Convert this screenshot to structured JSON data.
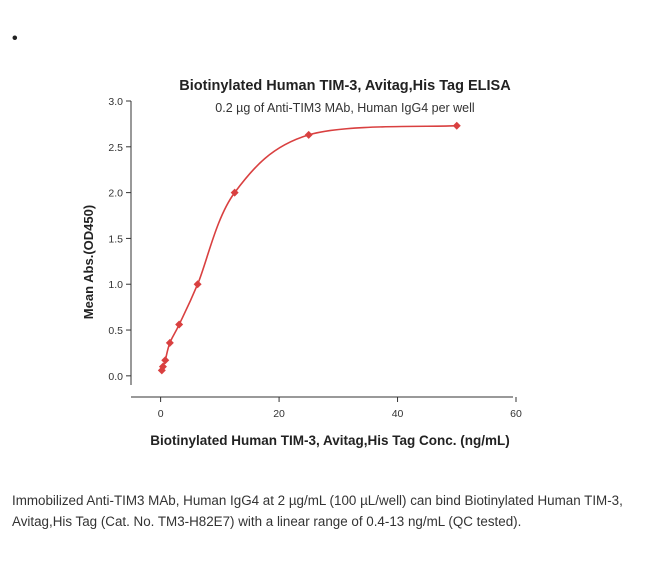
{
  "bullet": "•",
  "chart_data": {
    "type": "scatter",
    "title": "Biotinylated Human TIM-3, Avitag,His Tag ELISA",
    "subtitle": "0.2 µg of Anti-TIM3 MAb, Human IgG4 per well",
    "xlabel": "Biotinylated Human TIM-3, Avitag,His Tag Conc. (ng/mL)",
    "ylabel": "Mean Abs.(OD450)",
    "xlim": [
      -5,
      60
    ],
    "ylim": [
      -0.1,
      3.0
    ],
    "xticks": [
      0,
      20,
      40,
      60
    ],
    "yticks": [
      0.0,
      0.5,
      1.0,
      1.5,
      2.0,
      2.5,
      3.0
    ],
    "xtick_labels": [
      "0",
      "20",
      "40",
      "60"
    ],
    "ytick_labels": [
      "0.0",
      "0.5",
      "1.0",
      "1.5",
      "2.0",
      "2.5",
      "3.0"
    ],
    "series": [
      {
        "x": [
          0.2,
          0.39,
          0.78,
          1.56,
          3.13,
          6.25,
          12.5,
          25,
          50
        ],
        "y": [
          0.06,
          0.1,
          0.17,
          0.36,
          0.56,
          1.0,
          2.0,
          2.63,
          2.73
        ],
        "color": "#d94040",
        "marker": "diamond",
        "fit_curve": true
      }
    ]
  },
  "caption": "Immobilized Anti-TIM3 MAb, Human IgG4 at 2 µg/mL (100 µL/well) can bind Biotinylated Human TIM-3, Avitag,His Tag (Cat. No. TM3-H82E7) with a linear range of 0.4-13 ng/mL (QC tested)."
}
